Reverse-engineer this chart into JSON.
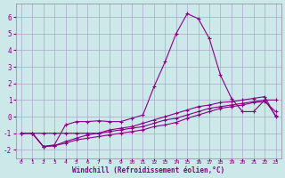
{
  "xlabel": "Windchill (Refroidissement éolien,°C)",
  "bg_color": "#cce8e8",
  "grid_color": "#aaaacc",
  "line_color": "#880088",
  "x_ticks": [
    0,
    1,
    2,
    3,
    4,
    5,
    6,
    7,
    8,
    9,
    10,
    11,
    12,
    13,
    14,
    15,
    16,
    17,
    18,
    19,
    20,
    21,
    22,
    23
  ],
  "ylim": [
    -2.5,
    6.8
  ],
  "xlim": [
    -0.5,
    23.5
  ],
  "yticks": [
    -2,
    -1,
    0,
    1,
    2,
    3,
    4,
    5,
    6
  ],
  "series": [
    [
      -1.0,
      -1.0,
      -1.8,
      -1.7,
      -0.5,
      -0.3,
      -0.3,
      -0.25,
      -0.3,
      -0.3,
      -0.1,
      0.1,
      1.8,
      3.3,
      5.0,
      6.2,
      5.9,
      4.7,
      2.5,
      1.1,
      0.3,
      0.3,
      1.0,
      1.0
    ],
    [
      -1.0,
      -1.0,
      -1.0,
      -1.0,
      -1.0,
      -1.0,
      -1.0,
      -1.0,
      -0.9,
      -0.8,
      -0.7,
      -0.6,
      -0.4,
      -0.2,
      -0.1,
      0.1,
      0.3,
      0.5,
      0.6,
      0.7,
      0.8,
      0.9,
      1.0,
      0.05
    ],
    [
      -1.0,
      -1.0,
      -1.8,
      -1.75,
      -1.6,
      -1.4,
      -1.3,
      -1.2,
      -1.1,
      -1.0,
      -0.9,
      -0.8,
      -0.6,
      -0.5,
      -0.35,
      -0.1,
      0.1,
      0.3,
      0.5,
      0.6,
      0.7,
      0.85,
      0.9,
      0.3
    ],
    [
      -1.0,
      -1.0,
      -1.8,
      -1.75,
      -1.5,
      -1.3,
      -1.1,
      -1.0,
      -0.8,
      -0.7,
      -0.6,
      -0.4,
      -0.2,
      0.0,
      0.2,
      0.4,
      0.6,
      0.7,
      0.85,
      0.9,
      1.0,
      1.1,
      1.2,
      0.0
    ]
  ]
}
